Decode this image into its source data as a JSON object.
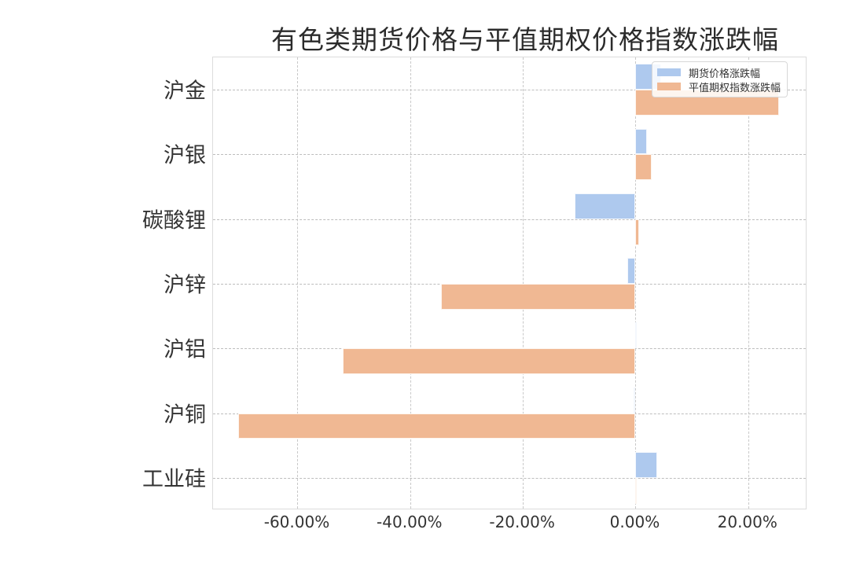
{
  "chart_data": {
    "type": "bar",
    "orientation": "horizontal",
    "title": "有色类期货价格与平值期权价格指数涨跌幅",
    "xlabel": "",
    "ylabel": "",
    "categories": [
      "沪金",
      "沪银",
      "碳酸锂",
      "沪锌",
      "沪铝",
      "沪铜",
      "工业硅"
    ],
    "series": [
      {
        "name": "期货价格涨跌幅",
        "color": "#aec9ee",
        "values": [
          4.5,
          2.0,
          -10.8,
          -1.5,
          0.0,
          -0.3,
          3.8
        ]
      },
      {
        "name": "平值期权指数涨跌幅",
        "color": "#f0b893",
        "values": [
          25.5,
          2.8,
          0.6,
          -34.5,
          -52.0,
          -70.6,
          0.2
        ]
      }
    ],
    "xlim": [
      -75,
      30.5
    ],
    "xticks": [
      -60,
      -40,
      -20,
      0,
      20
    ],
    "xtick_labels": [
      "-60.00%",
      "-40.00%",
      "-20.00%",
      "0.00%",
      "20.00%"
    ],
    "grid": true,
    "legend_position": "upper right"
  }
}
